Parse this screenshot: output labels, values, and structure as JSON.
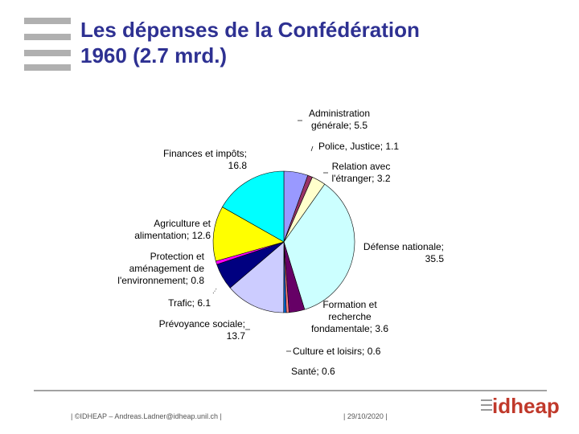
{
  "header": {
    "title_line1": "Les dépenses de la Confédération",
    "title_line2": "1960 (2.7 mrd.)"
  },
  "chart_data": {
    "type": "pie",
    "categories": [
      "Administration générale;",
      "Police, Justice;",
      "Relation avec l'étranger;",
      "Défense nationale;",
      "Formation et recherche fondamentale;",
      "Culture et loisirs;",
      "Santé;",
      "Prévoyance sociale;",
      "Trafic;",
      "Protection et aménagement de l'environnement;",
      "Agriculture et alimentation;",
      "Finances et impôts;"
    ],
    "values": [
      5.5,
      1.1,
      3.2,
      35.5,
      3.6,
      0.6,
      0.6,
      13.7,
      6.1,
      0.8,
      12.6,
      16.8
    ],
    "colors": [
      "#9999ff",
      "#993366",
      "#ffffcc",
      "#ccffff",
      "#660066",
      "#ff8080",
      "#0066cc",
      "#ccccff",
      "#000080",
      "#ff00ff",
      "#ffff00",
      "#00ffff"
    ]
  },
  "footer": {
    "left": "| ©IDHEAP – Andreas.Ladner@idheap.unil.ch |",
    "date": "| 29/10/2020 |",
    "logo": "idheap"
  }
}
